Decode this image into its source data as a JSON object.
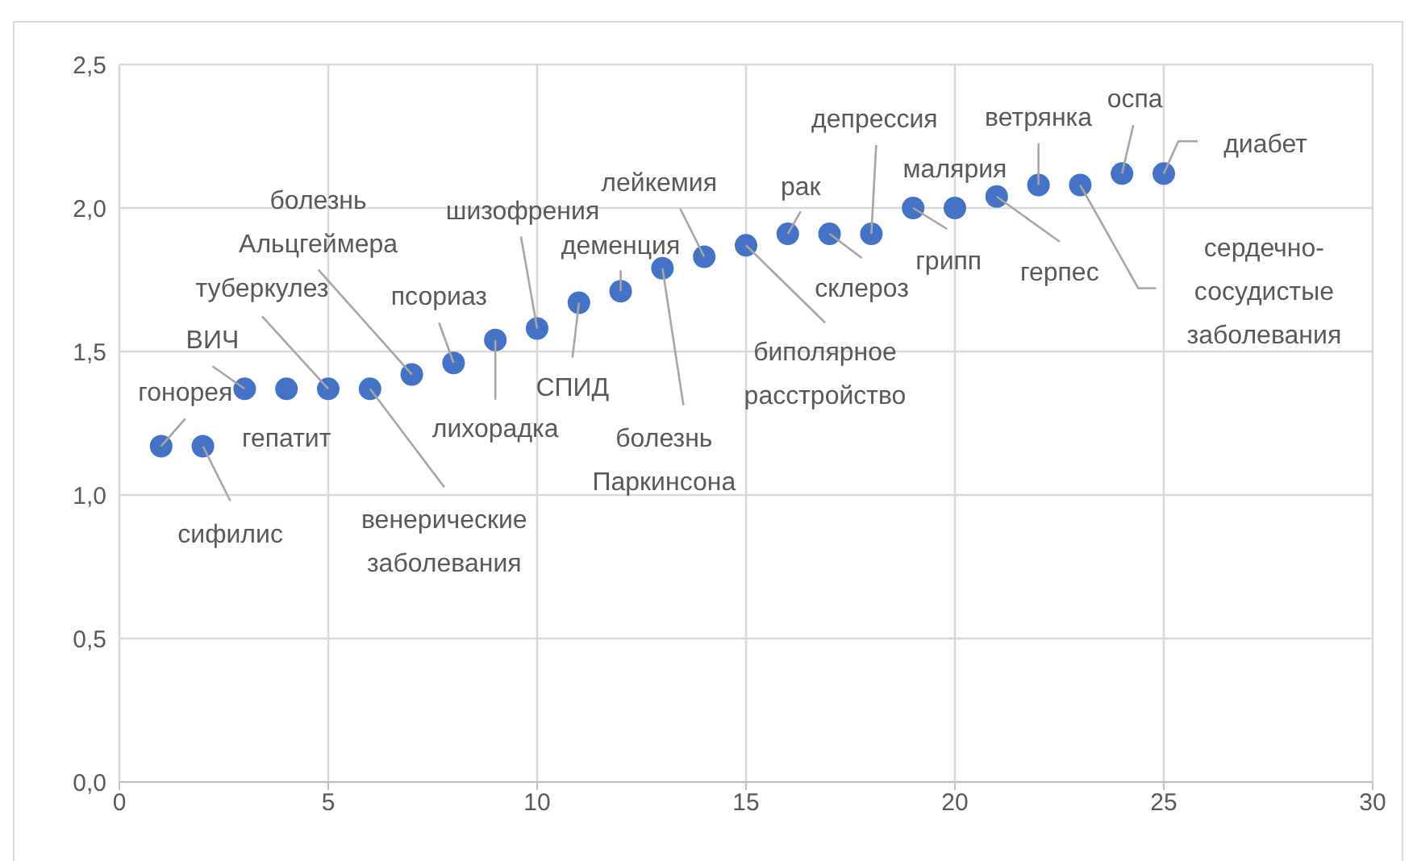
{
  "chart_data": {
    "type": "scatter",
    "x": [
      1,
      2,
      3,
      4,
      5,
      6,
      7,
      8,
      9,
      10,
      11,
      12,
      13,
      14,
      15,
      16,
      17,
      18,
      19,
      20,
      21,
      22,
      23,
      24,
      25
    ],
    "series": [
      {
        "color": "#4472c4",
        "values": [
          1.17,
          1.17,
          1.37,
          1.37,
          1.37,
          1.37,
          1.42,
          1.46,
          1.54,
          1.58,
          1.67,
          1.71,
          1.79,
          1.83,
          1.87,
          1.91,
          1.91,
          1.91,
          2.0,
          2.0,
          2.04,
          2.08,
          2.08,
          2.12,
          2.12
        ]
      }
    ],
    "xlim": [
      0,
      30
    ],
    "xticks": [
      0,
      5,
      10,
      15,
      20,
      25,
      30
    ],
    "ylim": [
      0,
      2.5
    ],
    "yticks": [
      {
        "value": 0,
        "label": "0,0"
      },
      {
        "value": 0.5,
        "label": "0,5"
      },
      {
        "value": 1,
        "label": "1,0"
      },
      {
        "value": 1.5,
        "label": "1,5"
      },
      {
        "value": 2,
        "label": "2,0"
      },
      {
        "value": 2.5,
        "label": "2,5"
      }
    ],
    "grid": true,
    "marker": "circle",
    "legend": false,
    "annotations": [
      {
        "text": "гонорея",
        "x": 1,
        "y": 1.17
      },
      {
        "text": "сифилис",
        "x": 2,
        "y": 1.17
      },
      {
        "text": "ВИЧ",
        "x": 3,
        "y": 1.37
      },
      {
        "text": "гепатит",
        "x": 4,
        "y": 1.37
      },
      {
        "text": "туберкулез",
        "x": 5,
        "y": 1.37
      },
      {
        "text": "венерические заболевания",
        "x": 6,
        "y": 1.37
      },
      {
        "text": "болезнь Альцгеймера",
        "x": 7,
        "y": 1.42
      },
      {
        "text": "псориаз",
        "x": 8,
        "y": 1.46
      },
      {
        "text": "лихорадка",
        "x": 9,
        "y": 1.54
      },
      {
        "text": "шизофрения",
        "x": 10,
        "y": 1.58
      },
      {
        "text": "СПИД",
        "x": 11,
        "y": 1.67
      },
      {
        "text": "деменция",
        "x": 12,
        "y": 1.71
      },
      {
        "text": "болезнь Паркинсона",
        "x": 13,
        "y": 1.79
      },
      {
        "text": "лейкемия",
        "x": 14,
        "y": 1.83
      },
      {
        "text": "биполярное расстройство",
        "x": 15,
        "y": 1.87
      },
      {
        "text": "рак",
        "x": 16,
        "y": 1.91
      },
      {
        "text": "склероз",
        "x": 17,
        "y": 1.91
      },
      {
        "text": "депрессия",
        "x": 18,
        "y": 1.91
      },
      {
        "text": "грипп",
        "x": 19,
        "y": 2.0
      },
      {
        "text": "малярия",
        "x": 20,
        "y": 2.0
      },
      {
        "text": "герпес",
        "x": 21,
        "y": 2.04
      },
      {
        "text": "ветрянка",
        "x": 22,
        "y": 2.08
      },
      {
        "text": "сердечно-сосудистые заболевания",
        "x": 23,
        "y": 2.08
      },
      {
        "text": "оспа",
        "x": 24,
        "y": 2.12
      },
      {
        "text": "диабет",
        "x": 25,
        "y": 2.12
      }
    ]
  }
}
